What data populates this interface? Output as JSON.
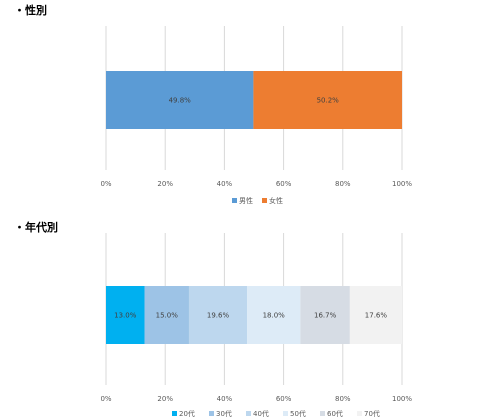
{
  "sections": [
    {
      "title": "・性別"
    },
    {
      "title": "・年代別"
    }
  ],
  "chart_data": [
    {
      "type": "bar",
      "stacked": "100%",
      "orientation": "horizontal",
      "title": "",
      "xlim": [
        0,
        100
      ],
      "x_ticks": [
        "0%",
        "20%",
        "40%",
        "60%",
        "80%",
        "100%"
      ],
      "grid": true,
      "legend_position": "bottom",
      "series": [
        {
          "name": "男性",
          "value": 49.8,
          "label": "49.8%",
          "color": "#5b9bd5"
        },
        {
          "name": "女性",
          "value": 50.2,
          "label": "50.2%",
          "color": "#ed7d31"
        }
      ]
    },
    {
      "type": "bar",
      "stacked": "100%",
      "orientation": "horizontal",
      "title": "",
      "xlim": [
        0,
        100
      ],
      "x_ticks": [
        "0%",
        "20%",
        "40%",
        "60%",
        "80%",
        "100%"
      ],
      "grid": true,
      "legend_position": "bottom",
      "series": [
        {
          "name": "20代",
          "value": 13.0,
          "label": "13.0%",
          "color": "#00b0f0"
        },
        {
          "name": "30代",
          "value": 15.0,
          "label": "15.0%",
          "color": "#9dc3e6"
        },
        {
          "name": "40代",
          "value": 19.6,
          "label": "19.6%",
          "color": "#bdd7ee"
        },
        {
          "name": "50代",
          "value": 18.0,
          "label": "18.0%",
          "color": "#ddebf7"
        },
        {
          "name": "60代",
          "value": 16.7,
          "label": "16.7%",
          "color": "#d6dce4"
        },
        {
          "name": "70代",
          "value": 17.6,
          "label": "17.6%",
          "color": "#f2f2f2"
        }
      ]
    }
  ]
}
